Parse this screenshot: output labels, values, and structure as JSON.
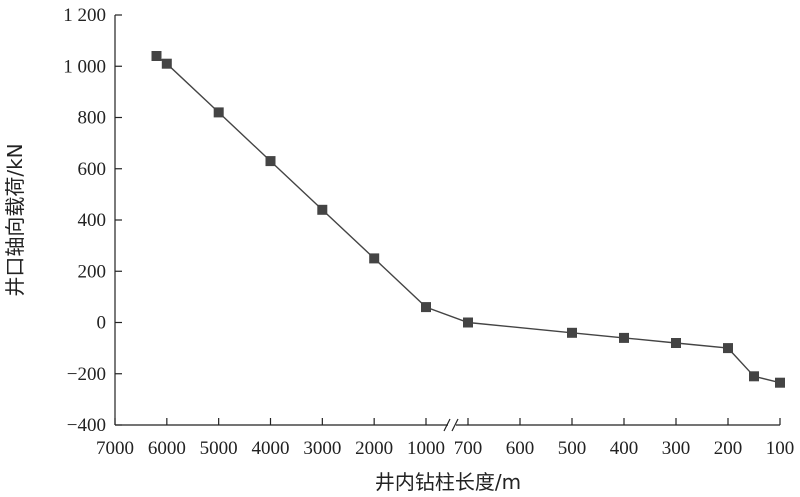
{
  "chart_data": {
    "type": "line",
    "xlabel": "井内钻柱长度/m",
    "ylabel": "井口轴向载荷/kN",
    "x_axis": {
      "scale": "broken",
      "break_after": "1000",
      "tick_labels": [
        "7000",
        "6000",
        "5000",
        "4000",
        "3000",
        "2000",
        "1000",
        "700",
        "600",
        "500",
        "400",
        "300",
        "200",
        "100"
      ]
    },
    "y_axis": {
      "ylim": [
        -400,
        1200
      ],
      "tick_labels": [
        "−400",
        "−200",
        "0",
        "200",
        "400",
        "600",
        "800",
        "1 000",
        "1 200"
      ]
    },
    "series": [
      {
        "marker": "square",
        "color": "#444444",
        "points": [
          {
            "x": 6200,
            "y": 1040
          },
          {
            "x": 6000,
            "y": 1010
          },
          {
            "x": 5000,
            "y": 820
          },
          {
            "x": 4000,
            "y": 630
          },
          {
            "x": 3000,
            "y": 440
          },
          {
            "x": 2000,
            "y": 250
          },
          {
            "x": 1000,
            "y": 60
          },
          {
            "x": 700,
            "y": 0
          },
          {
            "x": 500,
            "y": -40
          },
          {
            "x": 400,
            "y": -60
          },
          {
            "x": 300,
            "y": -80
          },
          {
            "x": 200,
            "y": -100
          },
          {
            "x": 150,
            "y": -210
          },
          {
            "x": 100,
            "y": -235
          }
        ]
      }
    ],
    "grid": false
  }
}
